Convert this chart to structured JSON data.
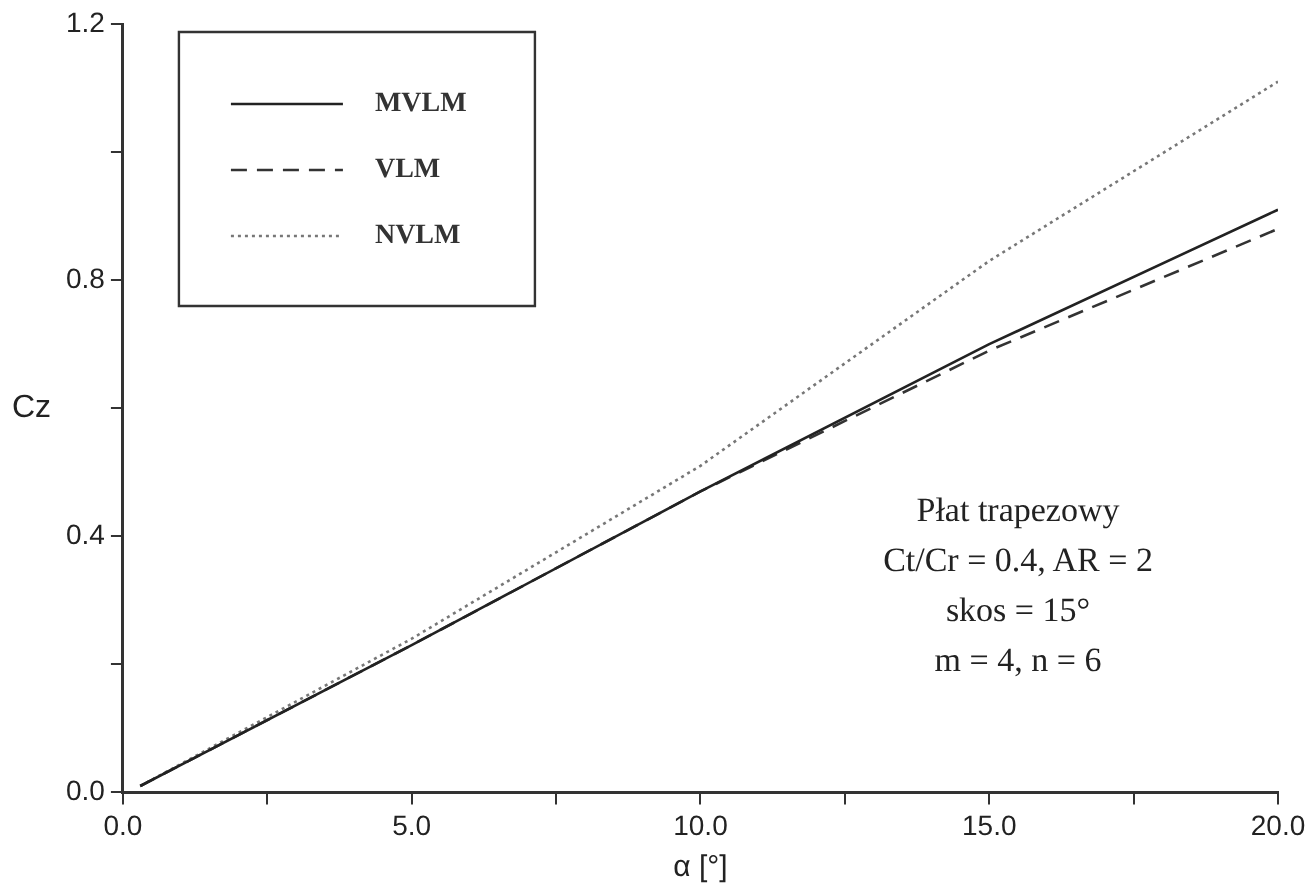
{
  "chart_data": {
    "type": "line",
    "xlabel": "α [°]",
    "ylabel": "Cz",
    "xlim": [
      0,
      20
    ],
    "ylim": [
      0,
      1.2
    ],
    "xticks": [
      {
        "value": 0,
        "label": "0.0"
      },
      {
        "value": 2.5,
        "label": null
      },
      {
        "value": 5,
        "label": "5.0"
      },
      {
        "value": 7.5,
        "label": null
      },
      {
        "value": 10,
        "label": "10.0"
      },
      {
        "value": 12.5,
        "label": null
      },
      {
        "value": 15,
        "label": "15.0"
      },
      {
        "value": 17.5,
        "label": null
      },
      {
        "value": 20,
        "label": "20.0"
      }
    ],
    "yticks": [
      {
        "value": 0,
        "label": "0.0"
      },
      {
        "value": 0.2,
        "label": null
      },
      {
        "value": 0.4,
        "label": "0.4"
      },
      {
        "value": 0.6,
        "label": null
      },
      {
        "value": 0.8,
        "label": "0.8"
      },
      {
        "value": 1,
        "label": null
      },
      {
        "value": 1.2,
        "label": "1.2"
      }
    ],
    "x": [
      0.3,
      5,
      10,
      15,
      20
    ],
    "series": [
      {
        "name": "MVLM",
        "color": "#222222",
        "line_style": "solid",
        "values": [
          0.01,
          0.23,
          0.47,
          0.7,
          0.91
        ]
      },
      {
        "name": "VLM",
        "color": "#333333",
        "line_style": "dashed",
        "values": [
          0.01,
          0.23,
          0.47,
          0.69,
          0.88
        ]
      },
      {
        "name": "NVLM",
        "color": "#777777",
        "line_style": "dotted",
        "values": [
          0.01,
          0.24,
          0.51,
          0.83,
          1.11
        ]
      }
    ],
    "grid": false,
    "legend": "top left",
    "marker": "none",
    "annotations": [
      "Płat trapezowy",
      "Ct/Cr = 0.4, AR = 2",
      "skos = 15°",
      "m = 4, n = 6"
    ]
  }
}
